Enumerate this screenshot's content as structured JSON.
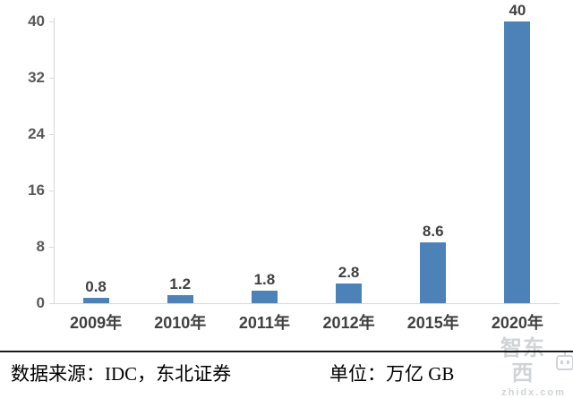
{
  "chart_data": {
    "type": "bar",
    "title": "",
    "categories": [
      "2009年",
      "2010年",
      "2011年",
      "2012年",
      "2015年",
      "2020年"
    ],
    "values": [
      0.8,
      1.2,
      1.8,
      2.8,
      8.6,
      40
    ],
    "value_labels": [
      "0.8",
      "1.2",
      "1.8",
      "2.8",
      "8.6",
      "40"
    ],
    "y_ticks": [
      0,
      8,
      16,
      24,
      32,
      40
    ],
    "ylim": [
      0,
      40
    ],
    "xlabel": "",
    "ylabel": "",
    "grid": false,
    "legend": "none",
    "bar_color": "#4d82b8",
    "axis_color": "#d9d9d9",
    "label_color": "#404040",
    "y_label_color": "#595959"
  },
  "footer": {
    "source_label": "数据来源：IDC，东北证券",
    "unit_label": "单位：万亿 GB"
  },
  "watermark": {
    "brand": "智东西",
    "domain": "zhidx.com"
  }
}
